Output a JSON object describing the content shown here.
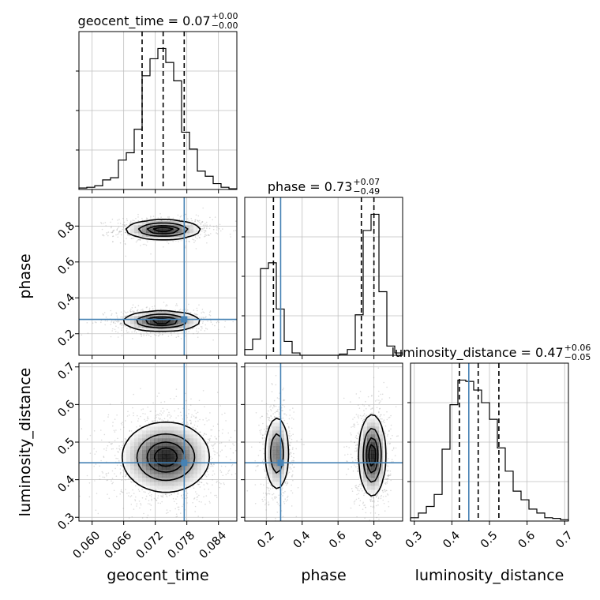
{
  "chart_data": {
    "type": "corner",
    "parameters": [
      "geocent_time",
      "phase",
      "luminosity_distance"
    ],
    "axis_labels": {
      "geocent_time": "geocent_time",
      "phase": "phase",
      "luminosity_distance": "luminosity_distance"
    },
    "ranges": {
      "geocent_time": [
        0.0575,
        0.0875
      ],
      "phase": [
        0.08,
        0.96
      ],
      "luminosity_distance": [
        0.29,
        0.71
      ]
    },
    "ticks": {
      "geocent_time": [
        0.06,
        0.066,
        0.072,
        0.078,
        0.084
      ],
      "phase": [
        0.2,
        0.4,
        0.6,
        0.8
      ],
      "luminosity_distance": [
        0.3,
        0.4,
        0.5,
        0.6,
        0.7
      ]
    },
    "tick_labels": {
      "geocent_time": [
        "0.060",
        "0.066",
        "0.072",
        "0.078",
        "0.084"
      ],
      "phase": [
        "0.2",
        "0.4",
        "0.6",
        "0.8"
      ],
      "luminosity_distance": [
        "0.3",
        "0.4",
        "0.5",
        "0.6",
        "0.7"
      ]
    },
    "titles": [
      {
        "param": "geocent_time",
        "text": "geocent_time = 0.07",
        "plus": "+0.00",
        "minus": "−0.00"
      },
      {
        "param": "phase",
        "text": "phase = 0.73",
        "plus": "+0.07",
        "minus": "−0.49"
      },
      {
        "param": "luminosity_distance",
        "text": "luminosity_distance = 0.47",
        "plus": "+0.06",
        "minus": "−0.05"
      }
    ],
    "truths": {
      "geocent_time": 0.0775,
      "phase": 0.28,
      "luminosity_distance": 0.445
    },
    "quantiles": {
      "geocent_time": [
        0.0695,
        0.0735,
        0.0775
      ],
      "phase": [
        0.24,
        0.73,
        0.8
      ],
      "luminosity_distance": [
        0.42,
        0.47,
        0.525
      ]
    },
    "histograms": {
      "geocent_time": {
        "bin_edges": [
          0.0575,
          0.059,
          0.0605,
          0.062,
          0.0635,
          0.065,
          0.0665,
          0.068,
          0.0695,
          0.071,
          0.0725,
          0.074,
          0.0755,
          0.077,
          0.0785,
          0.08,
          0.0815,
          0.083,
          0.0845,
          0.086,
          0.0875
        ],
        "counts": [
          2,
          3,
          5,
          13,
          16,
          40,
          50,
          82,
          155,
          178,
          192,
          173,
          148,
          78,
          55,
          25,
          18,
          8,
          3,
          1
        ]
      },
      "phase": {
        "bin_edges": [
          0.08,
          0.124,
          0.168,
          0.212,
          0.256,
          0.3,
          0.344,
          0.388,
          0.432,
          0.476,
          0.52,
          0.564,
          0.608,
          0.652,
          0.696,
          0.74,
          0.784,
          0.828,
          0.872,
          0.916,
          0.96
        ],
        "counts": [
          5,
          14,
          75,
          80,
          40,
          12,
          2,
          0,
          0,
          0,
          0,
          0,
          1,
          5,
          35,
          108,
          122,
          55,
          8,
          2
        ]
      },
      "luminosity_distance": {
        "bin_edges": [
          0.29,
          0.311,
          0.332,
          0.353,
          0.374,
          0.395,
          0.416,
          0.437,
          0.458,
          0.479,
          0.5,
          0.521,
          0.542,
          0.563,
          0.584,
          0.605,
          0.626,
          0.647,
          0.668,
          0.689,
          0.71
        ],
        "counts": [
          5,
          12,
          22,
          40,
          108,
          175,
          212,
          210,
          197,
          178,
          153,
          110,
          75,
          45,
          32,
          18,
          12,
          5,
          4,
          2
        ]
      }
    },
    "contours_2d": [
      {
        "x": "geocent_time",
        "y": "phase",
        "modes": [
          {
            "center": [
              0.0735,
              0.78
            ],
            "sx": 0.0034,
            "sy": 0.026,
            "weight": 0.5
          },
          {
            "center": [
              0.0732,
              0.27
            ],
            "sx": 0.0035,
            "sy": 0.027,
            "weight": 0.5
          }
        ]
      },
      {
        "x": "geocent_time",
        "y": "luminosity_distance",
        "modes": [
          {
            "center": [
              0.074,
              0.46
            ],
            "sx": 0.004,
            "sy": 0.045,
            "weight": 1.0
          }
        ]
      },
      {
        "x": "phase",
        "y": "luminosity_distance",
        "modes": [
          {
            "center": [
              0.26,
              0.47
            ],
            "sx": 0.034,
            "sy": 0.05,
            "weight": 0.4
          },
          {
            "center": [
              0.79,
              0.465
            ],
            "sx": 0.036,
            "sy": 0.052,
            "weight": 0.6
          }
        ]
      }
    ],
    "contour_levels": [
      0.118,
      0.393,
      0.675,
      0.864
    ],
    "grid": true,
    "colors": {
      "truth": "#4682b4",
      "hist": "#000000",
      "grid": "#bfbfbf",
      "scatter": "#9a9a9a"
    }
  }
}
